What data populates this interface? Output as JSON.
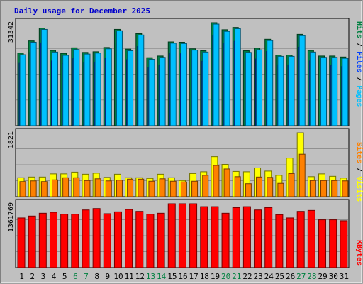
{
  "title": "Daily usage for December 2025",
  "colors": {
    "background": "#c0c0c0",
    "title_text": "#0000cc",
    "hits": "#008040",
    "files": "#0040ff",
    "pages": "#00c0ff",
    "visits": "#ffff00",
    "sites": "#ff8000",
    "kbytes": "#ff0000",
    "weekend_day": "#008040",
    "weekday_day": "#000000",
    "gridline": "#909090"
  },
  "chart_data": [
    {
      "type": "bar",
      "name": "hits-files-pages",
      "axis_max_label": "31342",
      "ylim": [
        0,
        31342
      ],
      "categories": [
        "1",
        "2",
        "3",
        "4",
        "5",
        "6",
        "7",
        "8",
        "9",
        "10",
        "11",
        "12",
        "13",
        "14",
        "15",
        "16",
        "17",
        "18",
        "19",
        "20",
        "21",
        "22",
        "23",
        "24",
        "25",
        "26",
        "27",
        "28",
        "29",
        "30",
        "31"
      ],
      "legend": [
        {
          "label": "Hits",
          "color": "#008040"
        },
        {
          "label": "Files",
          "color": "#0040ff"
        },
        {
          "label": "Pages",
          "color": "#00c0ff"
        }
      ],
      "series": [
        {
          "name": "Hits",
          "values": [
            22100,
            25800,
            29700,
            22900,
            22000,
            23700,
            22300,
            22500,
            23800,
            29300,
            23300,
            28000,
            20700,
            21200,
            25500,
            25400,
            23400,
            22800,
            31342,
            29200,
            29900,
            22800,
            23600,
            26300,
            21500,
            21500,
            27800,
            22900,
            21200,
            21200,
            20900
          ]
        },
        {
          "name": "Files",
          "values": [
            19000,
            22300,
            25200,
            19700,
            18900,
            20400,
            19200,
            19300,
            20500,
            25000,
            20100,
            24100,
            17800,
            18300,
            21900,
            21900,
            20100,
            19600,
            27500,
            25100,
            25700,
            19600,
            20300,
            22600,
            18500,
            18500,
            23900,
            19700,
            18300,
            18300,
            18000
          ]
        },
        {
          "name": "Pages",
          "values": [
            21600,
            25400,
            29300,
            22400,
            21400,
            23200,
            21800,
            22100,
            23400,
            28900,
            22800,
            27600,
            20200,
            20800,
            25100,
            25000,
            23000,
            22400,
            30900,
            28700,
            29500,
            22300,
            23100,
            25900,
            21100,
            21100,
            27400,
            22400,
            20800,
            20800,
            20500
          ]
        }
      ]
    },
    {
      "type": "bar",
      "name": "visits-sites",
      "axis_max_label": "1821",
      "ylim": [
        0,
        1821
      ],
      "categories": [
        "1",
        "2",
        "3",
        "4",
        "5",
        "6",
        "7",
        "8",
        "9",
        "10",
        "11",
        "12",
        "13",
        "14",
        "15",
        "16",
        "17",
        "18",
        "19",
        "20",
        "21",
        "22",
        "23",
        "24",
        "25",
        "26",
        "27",
        "28",
        "29",
        "30",
        "31"
      ],
      "legend": [
        {
          "label": "Visits",
          "color": "#ffff00"
        },
        {
          "label": "Sites",
          "color": "#ff8000"
        }
      ],
      "series": [
        {
          "name": "Visits",
          "values": [
            540,
            560,
            560,
            650,
            650,
            700,
            640,
            670,
            550,
            640,
            540,
            540,
            520,
            640,
            540,
            460,
            660,
            710,
            1140,
            920,
            720,
            710,
            820,
            730,
            610,
            1100,
            1821,
            570,
            650,
            580,
            530
          ]
        },
        {
          "name": "Sites",
          "values": [
            430,
            450,
            430,
            480,
            540,
            540,
            460,
            510,
            450,
            470,
            500,
            500,
            440,
            510,
            440,
            420,
            440,
            610,
            890,
            790,
            570,
            370,
            560,
            550,
            380,
            660,
            1210,
            460,
            460,
            460,
            450
          ]
        }
      ]
    },
    {
      "type": "bar",
      "name": "kbytes",
      "axis_max_label": "1361769",
      "ylim": [
        0,
        1361769
      ],
      "categories": [
        "1",
        "2",
        "3",
        "4",
        "5",
        "6",
        "7",
        "8",
        "9",
        "10",
        "11",
        "12",
        "13",
        "14",
        "15",
        "16",
        "17",
        "18",
        "19",
        "20",
        "21",
        "22",
        "23",
        "24",
        "25",
        "26",
        "27",
        "28",
        "29",
        "30",
        "31"
      ],
      "legend": [
        {
          "label": "KBytes",
          "color": "#ff0000"
        }
      ],
      "series": [
        {
          "name": "KBytes",
          "values": [
            1060000,
            1100000,
            1160000,
            1180000,
            1140000,
            1140000,
            1230000,
            1260000,
            1150000,
            1190000,
            1240000,
            1200000,
            1140000,
            1160000,
            1361769,
            1361769,
            1361769,
            1300000,
            1300000,
            1160000,
            1280000,
            1300000,
            1230000,
            1280000,
            1130000,
            1060000,
            1200000,
            1220000,
            1020000,
            1020000,
            1000000
          ]
        }
      ]
    }
  ]
}
